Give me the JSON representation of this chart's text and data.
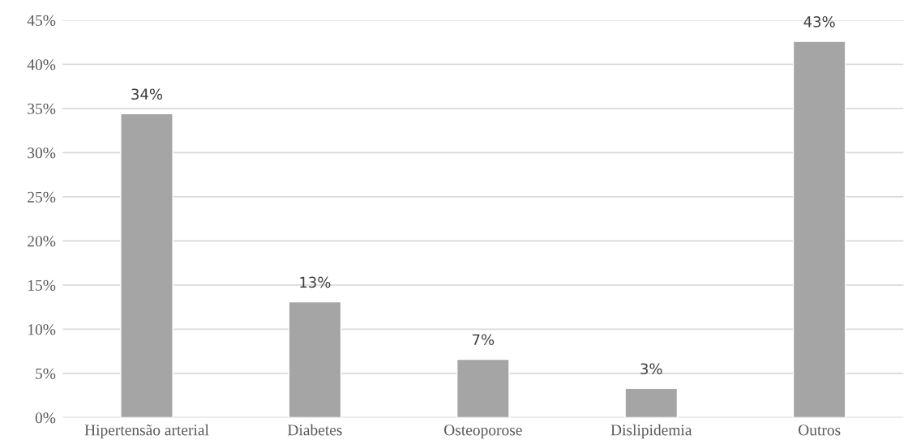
{
  "chart_data": {
    "type": "bar",
    "categories": [
      "Hipertensão arterial",
      "Diabetes",
      "Osteoporose",
      "Dislipidemia",
      "Outros"
    ],
    "values": [
      34.4,
      13.1,
      6.6,
      3.3,
      42.6
    ],
    "value_labels": [
      "34%",
      "13%",
      "7%",
      "3%",
      "43%"
    ],
    "color": "#a5a5a5",
    "ylim": [
      0,
      45
    ],
    "yticks": [
      {
        "value": 0,
        "label": "0%"
      },
      {
        "value": 5,
        "label": "5%"
      },
      {
        "value": 10,
        "label": "10%"
      },
      {
        "value": 15,
        "label": "15%"
      },
      {
        "value": 20,
        "label": "20%"
      },
      {
        "value": 25,
        "label": "25%"
      },
      {
        "value": 30,
        "label": "30%"
      },
      {
        "value": 35,
        "label": "35%"
      },
      {
        "value": 40,
        "label": "40%"
      },
      {
        "value": 45,
        "label": "45%"
      }
    ],
    "grid": "y",
    "legend": false
  }
}
